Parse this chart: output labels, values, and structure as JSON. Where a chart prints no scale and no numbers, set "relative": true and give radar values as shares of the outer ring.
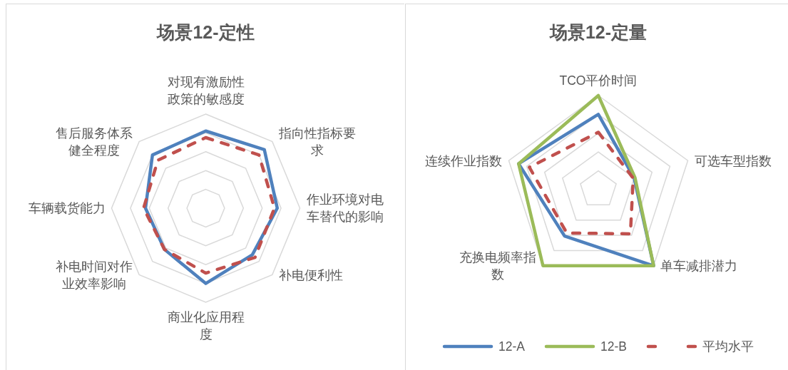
{
  "chart_data": [
    {
      "type": "radar",
      "title": "场景12-定性",
      "relative": true,
      "grid": true,
      "categories": [
        "对现有激励性政策的敏感度",
        "指向性指标要求",
        "作业环境对电车替代的影响",
        "补电便利性",
        "商业化应用程度",
        "补电时间对作业效率影响",
        "车辆载货能力",
        "售后服务体系健全程度"
      ],
      "series": [
        {
          "color": "#4f81bd",
          "line_style": "solid",
          "values": [
            0.82,
            0.88,
            0.76,
            0.7,
            0.8,
            0.62,
            0.64,
            0.8
          ]
        },
        {
          "color": "#c0504d",
          "line_style": "dashed",
          "values": [
            0.75,
            0.8,
            0.73,
            0.74,
            0.69,
            0.62,
            0.66,
            0.72
          ]
        }
      ]
    },
    {
      "type": "radar",
      "title": "场景12-定量",
      "relative": true,
      "grid": true,
      "legend": "bottom",
      "categories": [
        "TCO平价时间",
        "可选车型指数",
        "单车减排潜力",
        "充换电频率指数",
        "连续作业指数"
      ],
      "series": [
        {
          "name": "12-A",
          "color": "#4f81bd",
          "line_style": "solid",
          "values": [
            0.8,
            0.4,
            1.0,
            0.61,
            0.89
          ]
        },
        {
          "name": "12-B",
          "color": "#9bbb59",
          "line_style": "solid",
          "values": [
            1.0,
            0.41,
            1.0,
            1.0,
            0.89
          ]
        },
        {
          "name": "平均水平",
          "color": "#c0504d",
          "line_style": "dashed",
          "values": [
            0.61,
            0.39,
            0.58,
            0.57,
            0.77
          ]
        }
      ]
    }
  ]
}
